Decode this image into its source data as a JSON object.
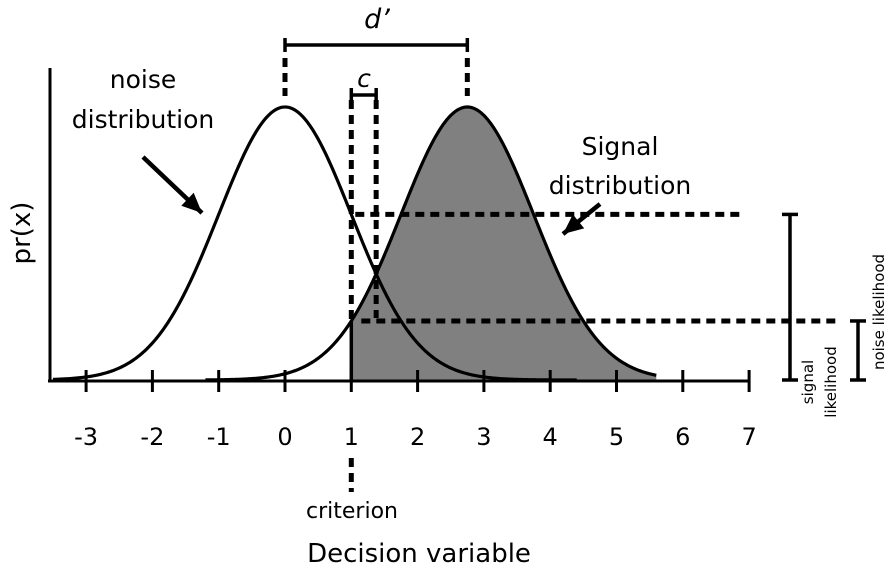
{
  "figure": {
    "y_axis_label": "pr(x)",
    "x_axis_label": "Decision variable",
    "x_ticks": [
      "-3",
      "-2",
      "-1",
      "0",
      "1",
      "2",
      "3",
      "4",
      "5",
      "6",
      "7"
    ],
    "labels": {
      "d_prime": "d’",
      "c": "c",
      "noise_line1": "noise",
      "noise_line2": "distribution",
      "signal_line1": "Signal",
      "signal_line2": "distribution",
      "criterion": "criterion",
      "signal_likelihood_line1": "signal",
      "signal_likelihood_line2": "likelihood",
      "noise_likelihood": "noise likelihood"
    },
    "parameters": {
      "noise_mean": 0,
      "signal_mean": 2.75,
      "sd": 1,
      "criterion": 1,
      "c_position": 1.375
    },
    "colors": {
      "line": "#000000",
      "signal_fill": "#808080",
      "background": "#ffffff"
    }
  }
}
